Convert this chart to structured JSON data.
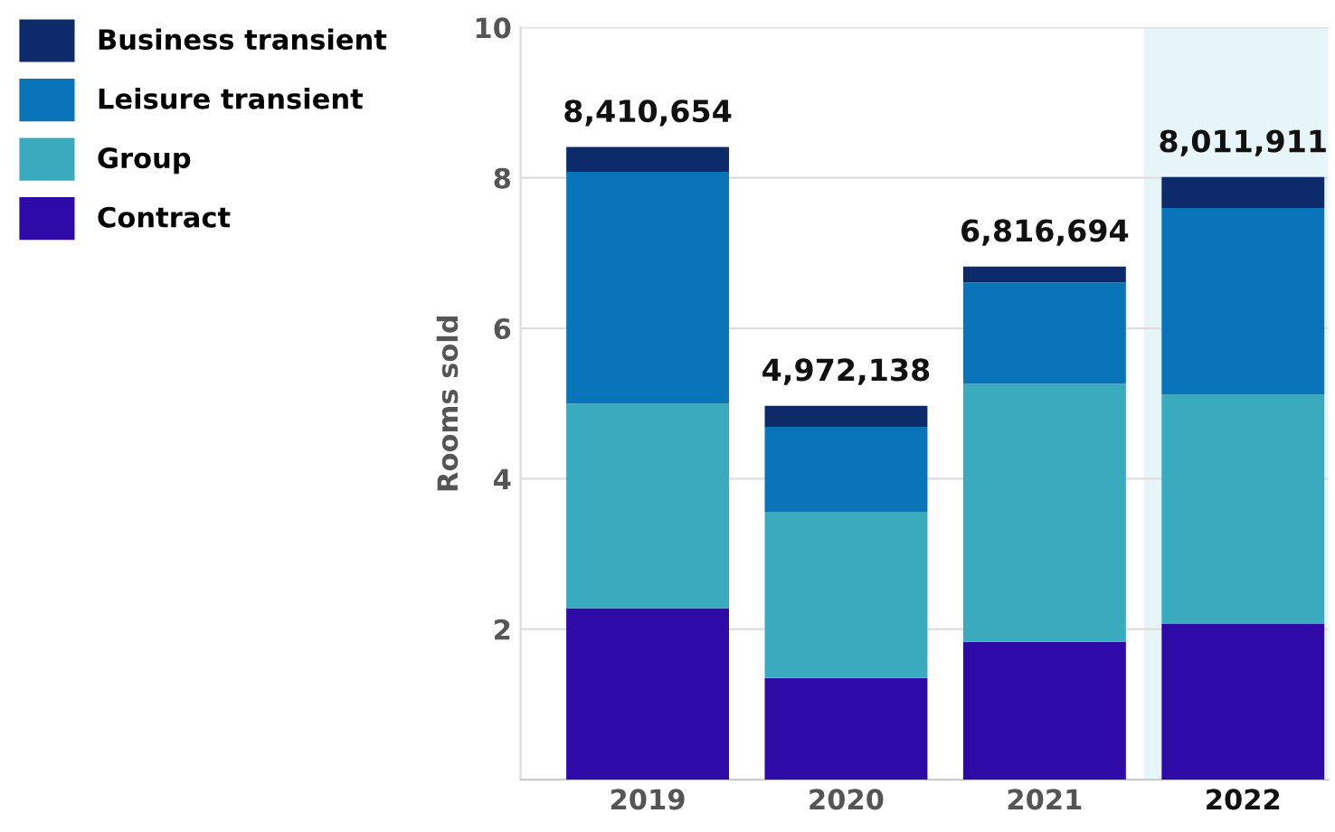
{
  "chart_data": {
    "type": "bar",
    "stacked": true,
    "ylabel": "Rooms sold",
    "categories": [
      "2019",
      "2020",
      "2021",
      "2022"
    ],
    "series": [
      {
        "name": "Contract",
        "color": "#2e0aa6",
        "values": [
          2.28,
          1.35,
          1.83,
          2.07
        ]
      },
      {
        "name": "Group",
        "color": "#3aaabf",
        "values": [
          2.72,
          2.21,
          3.43,
          3.05
        ]
      },
      {
        "name": "Leisure transient",
        "color": "#0a74b9",
        "values": [
          3.08,
          1.13,
          1.35,
          2.48
        ]
      },
      {
        "name": "Business transient",
        "color": "#0d2a6b",
        "values": [
          0.33,
          0.28,
          0.21,
          0.41
        ]
      }
    ],
    "annotations": [
      {
        "text": "8,410,654",
        "x": "2019",
        "y": 8.41
      },
      {
        "text": "4,972,138",
        "x": "2020",
        "y": 4.97
      },
      {
        "text": "6,816,694",
        "x": "2021",
        "y": 6.82
      },
      {
        "text": "8,011,911",
        "x": "2022",
        "y": 8.01
      }
    ],
    "bands": [
      {
        "axis": "x",
        "from": "2022",
        "to": "2022",
        "color": "#e8f5f8"
      }
    ],
    "ylim": [
      0,
      10
    ],
    "yticks": [
      {
        "value": 0,
        "label": null
      },
      2,
      4,
      6,
      8,
      10
    ],
    "grid": "y",
    "legend": "top left"
  }
}
